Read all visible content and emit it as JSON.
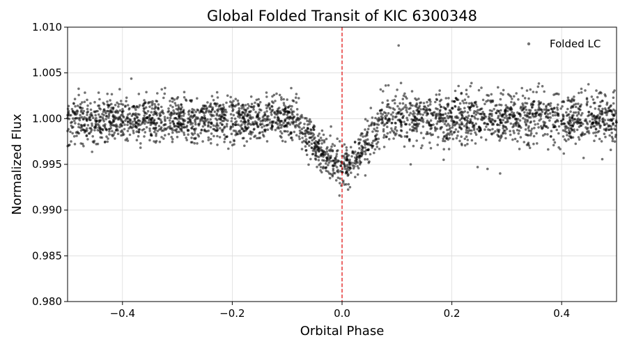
{
  "chart_data": {
    "type": "scatter",
    "title": "Global Folded Transit of KIC 6300348",
    "xlabel": "Orbital Phase",
    "ylabel": "Normalized Flux",
    "xlim": [
      -0.5,
      0.5
    ],
    "ylim": [
      0.98,
      1.01
    ],
    "xticks": [
      -0.4,
      -0.2,
      0.0,
      0.2,
      0.4
    ],
    "xtick_labels": [
      "−0.4",
      "−0.2",
      "0.0",
      "0.2",
      "0.4"
    ],
    "yticks": [
      0.98,
      0.985,
      0.99,
      0.995,
      1.0,
      1.005,
      1.01
    ],
    "ytick_labels": [
      "0.980",
      "0.985",
      "0.990",
      "0.995",
      "1.000",
      "1.005",
      "1.010"
    ],
    "grid": true,
    "legend_position": "top-right",
    "series": [
      {
        "name": "Folded LC",
        "color": "#000000",
        "marker": "circle",
        "points_approx_count": 3000,
        "baseline_flux": 1.0,
        "scatter_sigma": 0.0012,
        "transit": {
          "center_phase": 0.0,
          "ingress_start_phase": -0.08,
          "egress_end_phase": 0.07,
          "min_flux": 0.995
        },
        "outliers": [
          {
            "x": 0.103,
            "y": 1.008
          },
          {
            "x": 0.125,
            "y": 0.995
          },
          {
            "x": 0.185,
            "y": 0.9955
          },
          {
            "x": 0.247,
            "y": 0.9947
          },
          {
            "x": 0.265,
            "y": 0.9945
          },
          {
            "x": 0.288,
            "y": 0.994
          },
          {
            "x": 0.44,
            "y": 0.9957
          }
        ]
      }
    ],
    "reference_line": {
      "x": 0.0,
      "color": "#e00000",
      "style": "dashed"
    }
  }
}
